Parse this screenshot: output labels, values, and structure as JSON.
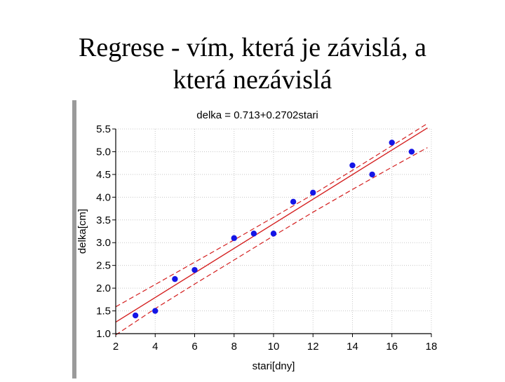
{
  "slide": {
    "title_line1": "Regrese - vím, která je závislá, a",
    "title_line2": "která nezávislá"
  },
  "chart_data": {
    "type": "scatter",
    "title": "delka = 0.713+0.2702stari",
    "xlabel": "stari[dny]",
    "ylabel": "delka[cm]",
    "xlim": [
      2,
      18
    ],
    "ylim": [
      1.0,
      5.5
    ],
    "x_ticks": [
      2,
      4,
      6,
      8,
      10,
      12,
      14,
      16,
      18
    ],
    "y_ticks": [
      1.0,
      1.5,
      2.0,
      2.5,
      3.0,
      3.5,
      4.0,
      4.5,
      5.0,
      5.5
    ],
    "x_tick_labels": [
      "2",
      "4",
      "6",
      "8",
      "10",
      "12",
      "14",
      "16",
      "18"
    ],
    "y_tick_labels": [
      "1.0",
      "1.5",
      "2.0",
      "2.5",
      "3.0",
      "3.5",
      "4.0",
      "4.5",
      "5.0",
      "5.5"
    ],
    "grid": true,
    "points": {
      "x": [
        3,
        4,
        5,
        6,
        8,
        9,
        10,
        11,
        12,
        14,
        15,
        16,
        17
      ],
      "y": [
        1.4,
        1.5,
        2.2,
        2.4,
        3.1,
        3.2,
        3.2,
        3.9,
        4.1,
        4.7,
        4.5,
        5.2,
        5.0
      ]
    },
    "regression": {
      "intercept": 0.713,
      "slope": 0.2702,
      "x_range": [
        2,
        17.8
      ]
    },
    "confidence_band": {
      "x": [
        2,
        4,
        6,
        8,
        10,
        12,
        14,
        16,
        17.8
      ],
      "lower": [
        0.97,
        1.55,
        2.09,
        2.62,
        3.15,
        3.67,
        4.17,
        4.66,
        5.09
      ],
      "upper": [
        1.59,
        2.08,
        2.57,
        3.06,
        3.56,
        4.06,
        4.59,
        5.13,
        5.62
      ]
    },
    "colors": {
      "points": "#1515e6",
      "line": "#d42020",
      "grid": "#c8c8c8",
      "axis": "#000000"
    }
  }
}
